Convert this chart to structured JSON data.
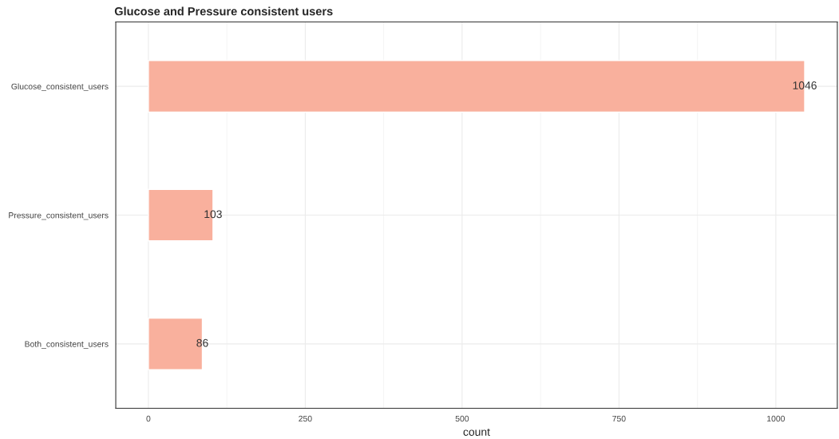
{
  "chart_data": {
    "type": "bar",
    "orientation": "horizontal",
    "title": "Glucose and Pressure consistent users",
    "xlabel": "count",
    "categories": [
      "Glucose_consistent_users",
      "Pressure_consistent_users",
      "Both_consistent_users"
    ],
    "values": [
      1046,
      103,
      86
    ],
    "color": "#f9b09d",
    "data_labels": true,
    "xlim": [
      -52,
      1098
    ],
    "xticks": [
      0,
      250,
      500,
      750,
      1000
    ],
    "grid": true
  }
}
